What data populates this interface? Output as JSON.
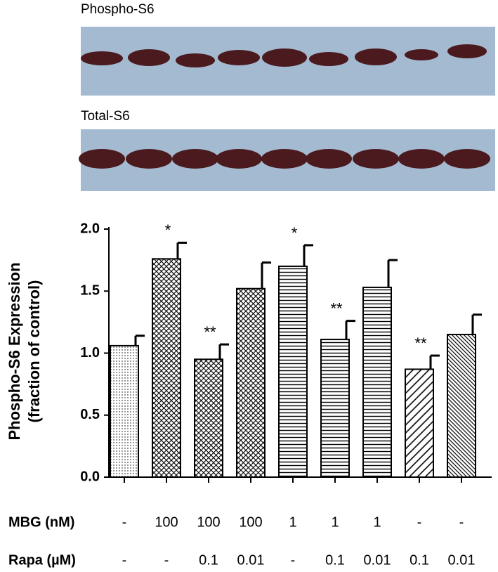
{
  "blots": [
    {
      "label": "Phospho-S6"
    },
    {
      "label": "Total-S6"
    }
  ],
  "chart_data": {
    "type": "bar",
    "ylabel": [
      "Phospho-S6 Expression",
      "(fraction of control)"
    ],
    "values": [
      1.06,
      1.76,
      0.95,
      1.52,
      1.7,
      1.11,
      1.53,
      0.87,
      1.15
    ],
    "errors": [
      0.08,
      0.13,
      0.12,
      0.21,
      0.17,
      0.15,
      0.22,
      0.11,
      0.16
    ],
    "significance": [
      null,
      "*",
      "**",
      null,
      "*",
      "**",
      null,
      "**",
      null
    ],
    "patterns": [
      "dots",
      "crosshatch",
      "crosshatch",
      "crosshatch",
      "horizontal",
      "horizontal",
      "horizontal",
      "diagonal",
      "diagonal-dense"
    ],
    "color": "#000000",
    "ylim": [
      0,
      2
    ],
    "yticks": [
      {
        "value": 0,
        "label": "0.0"
      },
      {
        "value": 0.5,
        "label": "0.5"
      },
      {
        "value": 1,
        "label": "1.0"
      },
      {
        "value": 1.5,
        "label": "1.5"
      },
      {
        "value": 2,
        "label": "2.0"
      }
    ],
    "conditions": [
      {
        "name": "MBG (nM)",
        "values": [
          "-",
          "100",
          "100",
          "100",
          "1",
          "1",
          "1",
          "-",
          "-"
        ]
      },
      {
        "name": "Rapa (µM)",
        "values": [
          "-",
          "-",
          "0.1",
          "0.01",
          "-",
          "0.1",
          "0.01",
          "0.1",
          "0.01"
        ]
      }
    ]
  }
}
